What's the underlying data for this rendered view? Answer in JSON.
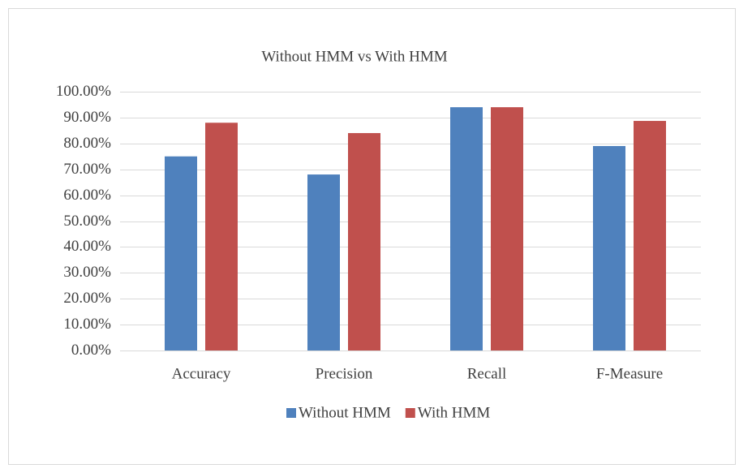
{
  "chart_data": {
    "type": "bar",
    "title": "Without HMM vs With HMM",
    "categories": [
      "Accuracy",
      "Precision",
      "Recall",
      "F-Measure"
    ],
    "series": [
      {
        "name": "Without HMM",
        "color": "#4f81bd",
        "values": [
          75,
          68,
          94,
          79
        ]
      },
      {
        "name": "With HMM",
        "color": "#c0504d",
        "values": [
          88,
          84,
          94,
          88.7
        ]
      }
    ],
    "ylim": [
      0,
      100
    ],
    "yticks": [
      {
        "value": 0,
        "label": "0.00%"
      },
      {
        "value": 10,
        "label": "10.00%"
      },
      {
        "value": 20,
        "label": "20.00%"
      },
      {
        "value": 30,
        "label": "30.00%"
      },
      {
        "value": 40,
        "label": "40.00%"
      },
      {
        "value": 50,
        "label": "50.00%"
      },
      {
        "value": 60,
        "label": "60.00%"
      },
      {
        "value": 70,
        "label": "70.00%"
      },
      {
        "value": 80,
        "label": "80.00%"
      },
      {
        "value": 90,
        "label": "90.00%"
      },
      {
        "value": 100,
        "label": "100.00%"
      }
    ],
    "grid": true,
    "legend": "bottom"
  }
}
